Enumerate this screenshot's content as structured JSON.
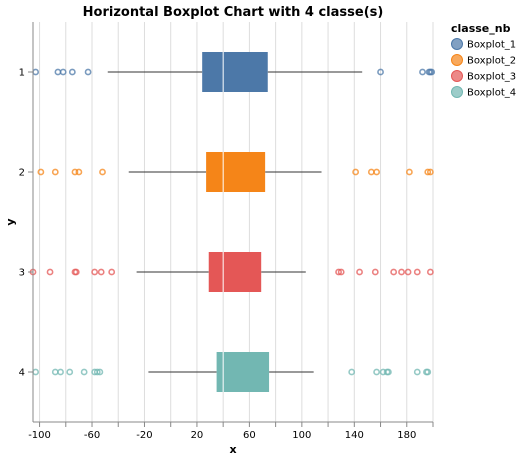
{
  "chart_data": {
    "type": "boxplot",
    "orientation": "horizontal",
    "title": "Horizontal Boxplot Chart with 4 classe(s)",
    "xlabel": "x",
    "ylabel": "y",
    "xlim": [
      -105,
      200
    ],
    "x_ticks": [
      -100,
      -60,
      -20,
      20,
      60,
      100,
      140,
      180
    ],
    "categories": [
      "1",
      "2",
      "3",
      "4"
    ],
    "legend": {
      "title": "classe_nb",
      "position": "right"
    },
    "series": [
      {
        "name": "Boxplot_1",
        "category": "1",
        "color": "#4c78a8",
        "whisker_low": -48,
        "q1": 24,
        "median": 40,
        "q3": 74,
        "whisker_high": 146,
        "outliers": [
          -103,
          -86,
          -82,
          -75,
          -63,
          160,
          192,
          197,
          198,
          199
        ]
      },
      {
        "name": "Boxplot_2",
        "category": "2",
        "color": "#f58518",
        "whisker_low": -32,
        "q1": 27,
        "median": 40,
        "q3": 72,
        "whisker_high": 115,
        "outliers": [
          -99,
          -88,
          -73,
          -70,
          -52,
          141,
          153,
          157,
          182,
          196,
          198
        ]
      },
      {
        "name": "Boxplot_3",
        "category": "3",
        "color": "#e45756",
        "whisker_low": -26,
        "q1": 29,
        "median": 40,
        "q3": 69,
        "whisker_high": 103,
        "outliers": [
          -105,
          -92,
          -73,
          -72,
          -58,
          -53,
          -45,
          128,
          130,
          144,
          156,
          170,
          176,
          181,
          188,
          198
        ]
      },
      {
        "name": "Boxplot_4",
        "category": "4",
        "color": "#72b7b2",
        "whisker_low": -17,
        "q1": 35,
        "median": 40,
        "q3": 75,
        "whisker_high": 109,
        "outliers": [
          -103,
          -88,
          -84,
          -77,
          -66,
          -58,
          -56,
          -54,
          138,
          157,
          162,
          165,
          166,
          188,
          195,
          196
        ]
      }
    ]
  }
}
